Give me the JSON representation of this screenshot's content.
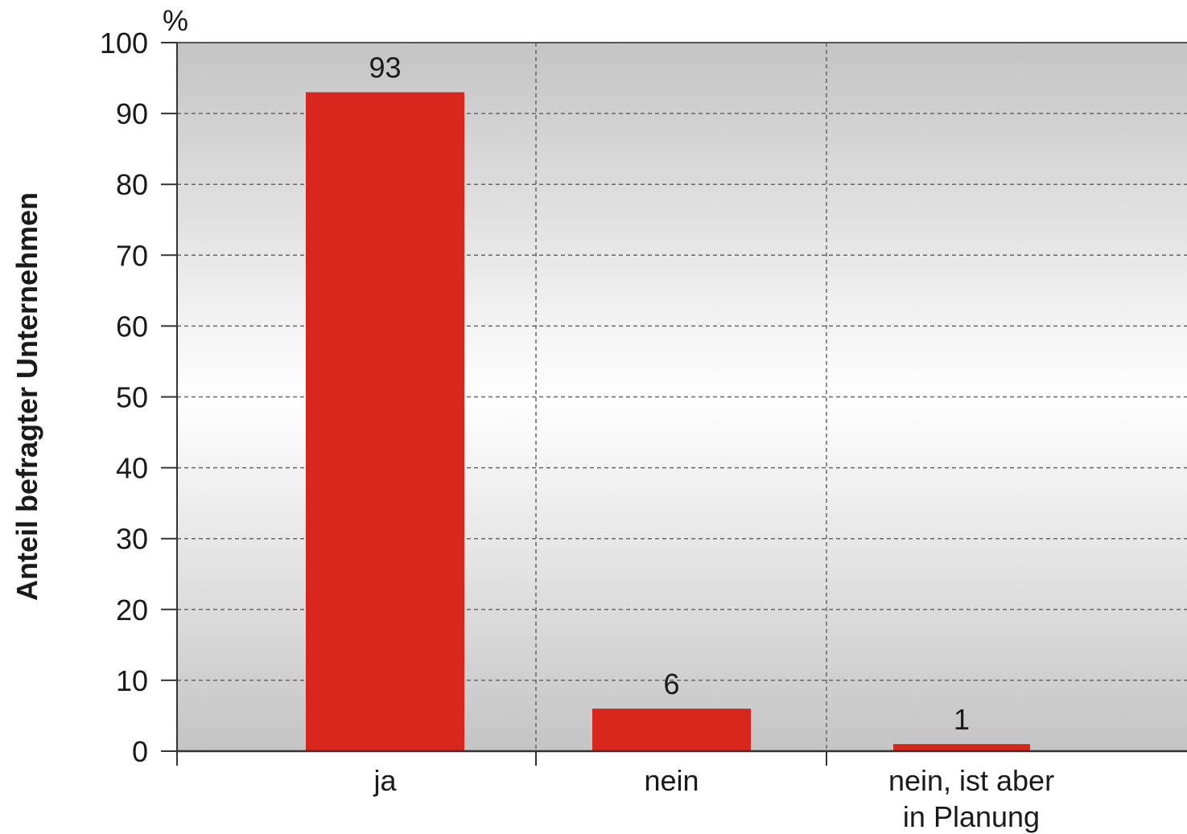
{
  "chart_data": {
    "type": "bar",
    "categories": [
      [
        "ja"
      ],
      [
        "nein"
      ],
      [
        "nein, ist aber",
        "in Planung"
      ]
    ],
    "values": [
      93,
      6,
      1
    ],
    "data_labels": [
      "93",
      "6",
      "1"
    ],
    "ylabel": "Anteil befragter Unternehmen",
    "yunit": "%",
    "ylim": [
      0,
      100
    ],
    "yticks": [
      0,
      10,
      20,
      30,
      40,
      50,
      60,
      70,
      80,
      90,
      100
    ],
    "grid": true,
    "bar_color": "#d9261c",
    "background_gradient": [
      "#c4c4c4",
      "#ffffff",
      "#c4c4c4"
    ],
    "grid_color": "#666666"
  }
}
